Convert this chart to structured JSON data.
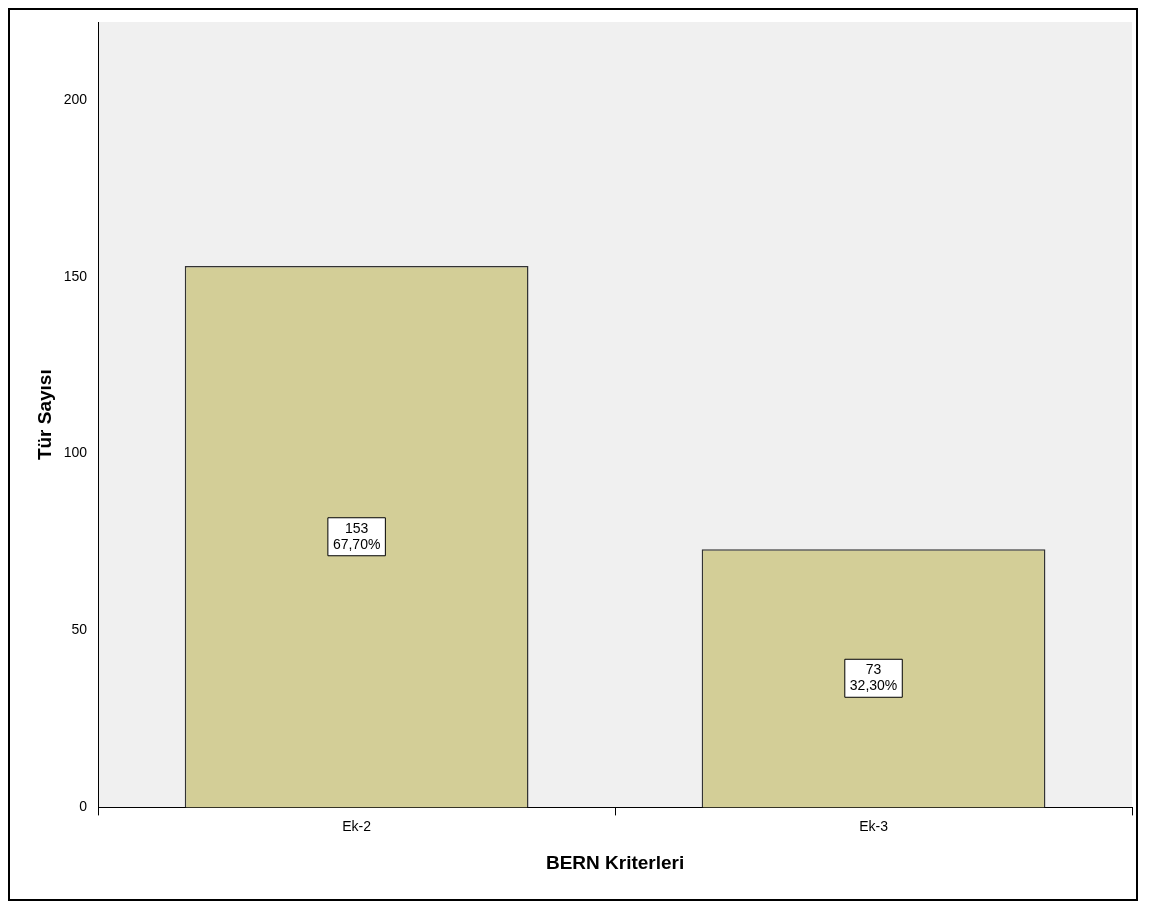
{
  "chart_data": {
    "type": "bar",
    "xlabel": "BERN Kriterleri",
    "ylabel": "Tür Sayısı",
    "categories": [
      "Ek-2",
      "Ek-3"
    ],
    "values": [
      153,
      73
    ],
    "color": "#d3ce97",
    "value_labels": [
      "153\n67,70%",
      "73\n32,30%"
    ],
    "ylim": [
      0,
      222
    ],
    "yticks": [
      0,
      50,
      100,
      150,
      200
    ],
    "grid": false,
    "legend": false
  }
}
